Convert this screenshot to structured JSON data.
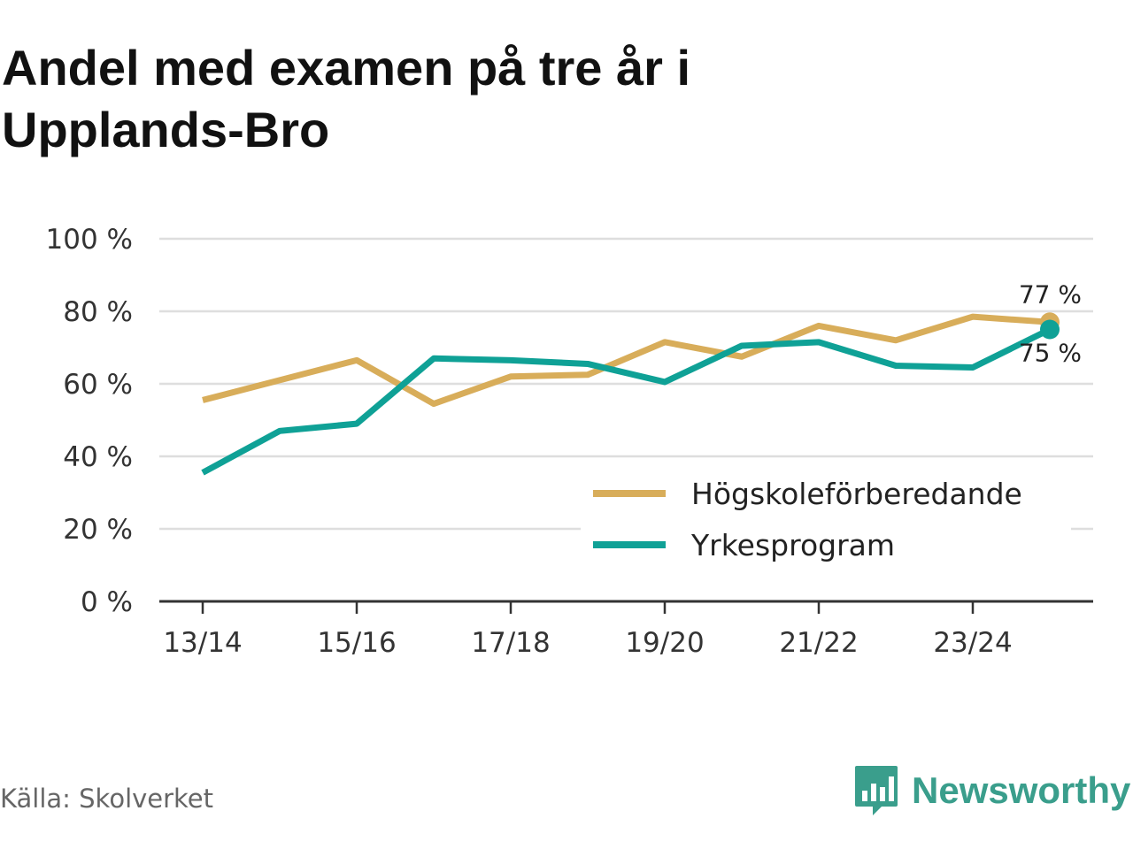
{
  "title": "Andel med examen på tre år i Upplands-Bro",
  "source": "Källa: Skolverket",
  "brand": {
    "name": "Newsworthy",
    "icon": "newsworthy-logo-icon",
    "color": "#3a9e8c"
  },
  "chart_data": {
    "type": "line",
    "title": "Andel med examen på tre år i Upplands-Bro",
    "xlabel": "",
    "ylabel": "",
    "categories": [
      "13/14",
      "14/15",
      "15/16",
      "16/17",
      "17/18",
      "18/19",
      "19/20",
      "20/21",
      "21/22",
      "22/23",
      "23/24",
      "24/25"
    ],
    "x_tick_labels": [
      "13/14",
      "15/16",
      "17/18",
      "19/20",
      "21/22",
      "23/24"
    ],
    "y_ticks": [
      0,
      20,
      40,
      60,
      80,
      100
    ],
    "y_tick_labels": [
      "0 %",
      "20 %",
      "40 %",
      "60 %",
      "80 %",
      "100 %"
    ],
    "ylim": [
      0,
      100
    ],
    "grid": true,
    "legend_position": "bottom-right",
    "series": [
      {
        "name": "Högskoleförberedande",
        "color": "#d8ad5a",
        "values": [
          55.5,
          61,
          66.5,
          54.5,
          62,
          62.5,
          71.5,
          67.5,
          76,
          72,
          78.5,
          77
        ],
        "end_label": "77 %"
      },
      {
        "name": "Yrkesprogram",
        "color": "#0fa196",
        "values": [
          35.5,
          47,
          49,
          67,
          66.5,
          65.5,
          60.5,
          70.5,
          71.5,
          65,
          64.5,
          75
        ],
        "end_label": "75 %"
      }
    ]
  }
}
